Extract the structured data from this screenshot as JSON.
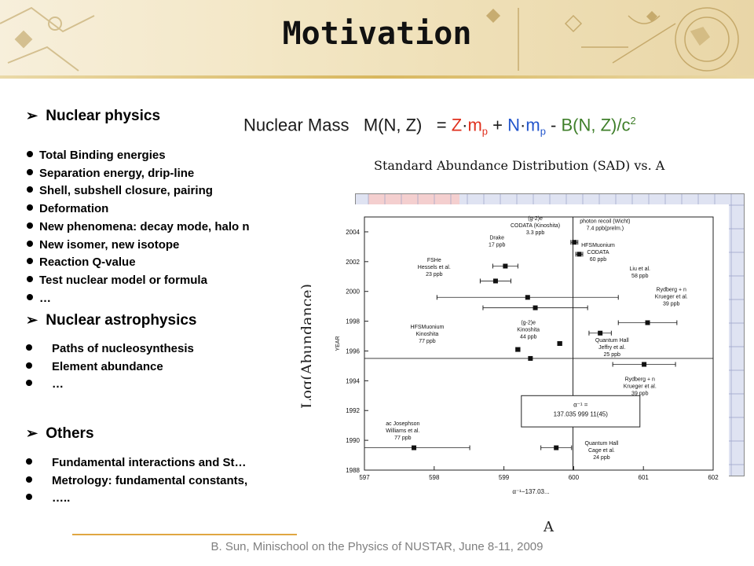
{
  "slide": {
    "title": "Motivation",
    "footer": "B. Sun, Minischool on the Physics of NUSTAR, June 8-11, 2009"
  },
  "sections": {
    "nuclear_physics": {
      "heading": "Nuclear physics",
      "items": [
        "Total Binding energies",
        "Separation energy, drip-line",
        "Shell, subshell closure, pairing",
        "Deformation",
        "New phenomena: decay mode, halo n",
        "New isomer, new isotope",
        "Reaction Q-value",
        "Test nuclear model or formula",
        "…"
      ]
    },
    "nuclear_astrophysics": {
      "heading": "Nuclear astrophysics",
      "items": [
        "Paths of nucleosynthesis",
        "Element abundance",
        "…"
      ]
    },
    "others": {
      "heading": "Others",
      "items": [
        "Fundamental interactions and St…",
        "Metrology: fundamental constants,",
        "….."
      ]
    }
  },
  "formula": {
    "label": "Nuclear Mass",
    "lhs": "M(N, Z)",
    "eq": "=",
    "z": "Z",
    "dot": "·",
    "m": "m",
    "p": "p",
    "plus": "+",
    "n": "N",
    "minus": "-",
    "b": "B(N, Z)/c",
    "two": "2"
  },
  "sad_figure": {
    "title": "Standard Abundance Distribution (SAD) vs. A",
    "ylabel": "Log(Abundance)",
    "xlabel": "A"
  },
  "chart_data": {
    "type": "scatter",
    "title": "",
    "xlabel": "α⁻¹−137.03...",
    "ylabel": "YEAR",
    "xlim": [
      597,
      602
    ],
    "ylim": [
      1988,
      2005
    ],
    "xticks": [
      "597",
      "598",
      "599",
      "600",
      "601",
      "602"
    ],
    "yticks": [
      "1988",
      "1990",
      "1992",
      "1994",
      "1996",
      "1998",
      "2000",
      "2002",
      "2004"
    ],
    "reference_line_x": 599.99,
    "box_text": [
      "α⁻¹ =",
      "137.035 999 11(45)"
    ],
    "points": [
      {
        "x": 600.01,
        "y": 2003.3,
        "err": 0.05
      },
      {
        "x": 600.08,
        "y": 2002.5,
        "err": 0.05
      },
      {
        "x": 599.02,
        "y": 2001.7,
        "err": 0.18
      },
      {
        "x": 598.88,
        "y": 2000.7,
        "err": 0.22
      },
      {
        "x": 599.34,
        "y": 1999.6,
        "err": 1.3
      },
      {
        "x": 599.45,
        "y": 1998.9,
        "err": 0.75
      },
      {
        "x": 601.06,
        "y": 1997.9,
        "err": 0.42
      },
      {
        "x": 600.38,
        "y": 1997.2,
        "err": 0.16
      },
      {
        "x": 599.2,
        "y": 1996.1,
        "err": 0.03
      },
      {
        "x": 599.8,
        "y": 1996.5,
        "err": 0.03
      },
      {
        "x": 599.38,
        "y": 1995.5,
        "err": 3.1
      },
      {
        "x": 601.01,
        "y": 1995.1,
        "err": 0.45
      },
      {
        "x": 597.71,
        "y": 1989.5,
        "err": 0.8
      },
      {
        "x": 599.75,
        "y": 1989.5,
        "err": 0.22
      }
    ],
    "annotations": [
      {
        "lines": [
          "(g-2)e",
          "CODATA (Kinoshita)",
          "3.3 ppb"
        ],
        "x": 599.45,
        "y": 2004.8
      },
      {
        "lines": [
          "photon recoil (Wicht)",
          "7.4 ppb(prelm.)"
        ],
        "x": 600.45,
        "y": 2004.6
      },
      {
        "lines": [
          "Drake",
          "17 ppb"
        ],
        "x": 598.9,
        "y": 2003.5
      },
      {
        "lines": [
          "FSHe",
          "Hessels et al.",
          "23 ppb"
        ],
        "x": 598.0,
        "y": 2002.0
      },
      {
        "lines": [
          "HFSMuonium",
          "CODATA",
          "60 ppb"
        ],
        "x": 600.35,
        "y": 2003.0
      },
      {
        "lines": [
          "Liu et al.",
          "58 ppb"
        ],
        "x": 600.95,
        "y": 2001.4
      },
      {
        "lines": [
          "Rydberg + n",
          "Krueger et al.",
          "39 ppb"
        ],
        "x": 601.4,
        "y": 2000.0
      },
      {
        "lines": [
          "(g-2)e",
          "Kinoshita",
          "44 ppb"
        ],
        "x": 599.35,
        "y": 1997.8
      },
      {
        "lines": [
          "HFSMuonium",
          "Kinoshita",
          "77 ppb"
        ],
        "x": 597.9,
        "y": 1997.5
      },
      {
        "lines": [
          "Quantum Hall",
          "Jeffry et al.",
          "25 ppb"
        ],
        "x": 600.55,
        "y": 1996.6
      },
      {
        "lines": [
          "Rydberg + n",
          "Krueger et al.",
          "39 ppb"
        ],
        "x": 600.95,
        "y": 1994.0
      },
      {
        "lines": [
          "ac Josephson",
          "Williams et al.",
          "77 ppb"
        ],
        "x": 597.55,
        "y": 1991.0
      },
      {
        "lines": [
          "Quantum Hall",
          "Cage et al.",
          "24 ppb"
        ],
        "x": 600.4,
        "y": 1989.7
      }
    ]
  }
}
